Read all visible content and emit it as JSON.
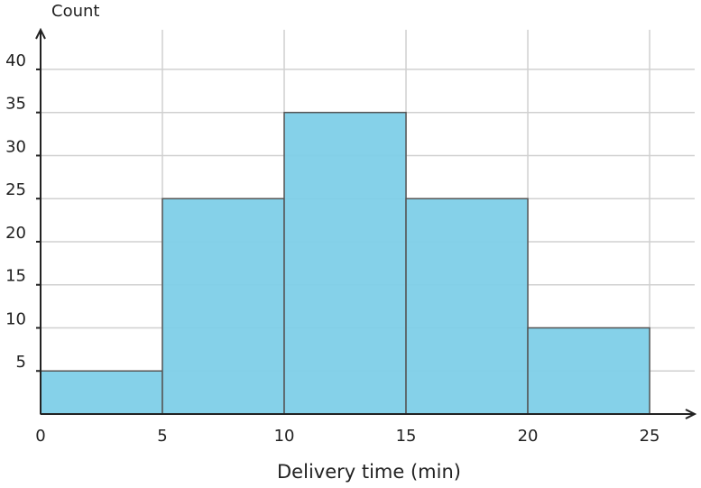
{
  "chart_data": {
    "type": "histogram",
    "y_label": "Count",
    "x_label": "Delivery time (min)",
    "bins": [
      0,
      5,
      10,
      15,
      20,
      25
    ],
    "values": [
      5,
      25,
      35,
      25,
      10
    ],
    "color": "#7ecfe8",
    "xlim": [
      0,
      26.85
    ],
    "ylim": [
      0,
      44.6
    ],
    "xticks": [
      0,
      5,
      10,
      15,
      20,
      25
    ],
    "yticks": [
      5,
      10,
      15,
      20,
      25,
      30,
      35,
      40
    ],
    "grid": true
  }
}
